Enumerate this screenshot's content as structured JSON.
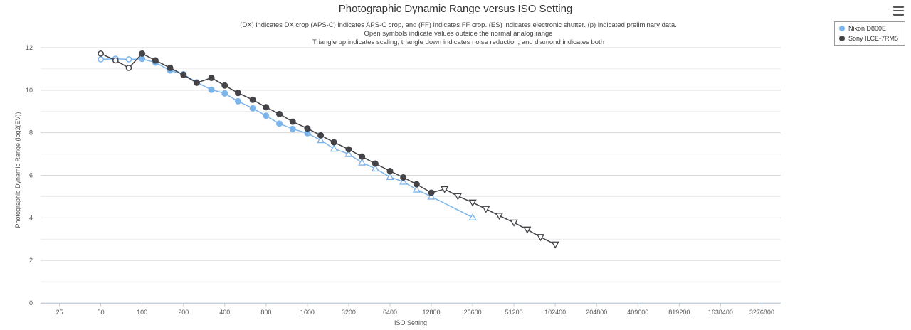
{
  "title": "Photographic Dynamic Range versus ISO Setting",
  "subtitle": [
    "(DX) indicates DX crop (APS-C) indicates APS-C crop, and (FF) indicates FF crop. (ES) indicates electronic shutter. (p) indicated preliminary data.",
    "Open symbols indicate values outside the normal analog range",
    "Triangle up indicates scaling, triangle down indicates noise reduction, and diamond indicates both"
  ],
  "legend": [
    {
      "label": "Nikon D800E",
      "color": "#7cb5ec"
    },
    {
      "label": "Sony ILCE-7RM5",
      "color": "#434348"
    }
  ],
  "chart_data": {
    "type": "line",
    "title": "Photographic Dynamic Range versus ISO Setting",
    "xlabel": "ISO Setting",
    "ylabel": "Photographic Dynamic Range (log2(EV))",
    "x_scale": "log2",
    "x_ticks": [
      25,
      50,
      100,
      200,
      400,
      800,
      1600,
      3200,
      6400,
      12800,
      25600,
      51200,
      102400,
      204800,
      409600,
      819200,
      1638400,
      3276800
    ],
    "xlim": [
      18.2,
      4500000
    ],
    "ylim": [
      0,
      12
    ],
    "y_ticks": [
      0,
      2,
      4,
      6,
      8,
      10,
      12
    ],
    "grid": true,
    "legend_position": "top-right",
    "series": [
      {
        "name": "Nikon D800E",
        "color": "#7cb5ec",
        "points": [
          {
            "x": 50,
            "y": 11.45,
            "m": "open-circle"
          },
          {
            "x": 64,
            "y": 11.48,
            "m": "open-circle"
          },
          {
            "x": 80,
            "y": 11.45,
            "m": "open-circle"
          },
          {
            "x": 100,
            "y": 11.47,
            "m": "circle"
          },
          {
            "x": 125,
            "y": 11.3,
            "m": "circle"
          },
          {
            "x": 160,
            "y": 10.93,
            "m": "circle"
          },
          {
            "x": 200,
            "y": 10.75,
            "m": "circle"
          },
          {
            "x": 250,
            "y": 10.37,
            "m": "circle"
          },
          {
            "x": 320,
            "y": 10.02,
            "m": "circle"
          },
          {
            "x": 400,
            "y": 9.85,
            "m": "circle"
          },
          {
            "x": 500,
            "y": 9.48,
            "m": "circle"
          },
          {
            "x": 640,
            "y": 9.15,
            "m": "circle"
          },
          {
            "x": 800,
            "y": 8.8,
            "m": "circle"
          },
          {
            "x": 1000,
            "y": 8.43,
            "m": "circle"
          },
          {
            "x": 1250,
            "y": 8.18,
            "m": "circle"
          },
          {
            "x": 1600,
            "y": 7.98,
            "m": "circle"
          },
          {
            "x": 2000,
            "y": 7.65,
            "m": "open-triangle-up"
          },
          {
            "x": 2500,
            "y": 7.25,
            "m": "open-triangle-up"
          },
          {
            "x": 3200,
            "y": 7.0,
            "m": "open-triangle-up"
          },
          {
            "x": 4000,
            "y": 6.6,
            "m": "open-triangle-up"
          },
          {
            "x": 5000,
            "y": 6.32,
            "m": "open-triangle-up"
          },
          {
            "x": 6400,
            "y": 5.92,
            "m": "open-triangle-up"
          },
          {
            "x": 8000,
            "y": 5.7,
            "m": "open-triangle-up"
          },
          {
            "x": 10000,
            "y": 5.33,
            "m": "open-triangle-up"
          },
          {
            "x": 12800,
            "y": 5.0,
            "m": "open-triangle-up"
          },
          {
            "x": 25600,
            "y": 4.02,
            "m": "open-triangle-up"
          }
        ]
      },
      {
        "name": "Sony ILCE-7RM5",
        "color": "#434348",
        "points": [
          {
            "x": 50,
            "y": 11.72,
            "m": "open-circle"
          },
          {
            "x": 64,
            "y": 11.4,
            "m": "open-circle"
          },
          {
            "x": 80,
            "y": 11.05,
            "m": "open-circle"
          },
          {
            "x": 100,
            "y": 11.72,
            "m": "circle"
          },
          {
            "x": 125,
            "y": 11.4,
            "m": "circle"
          },
          {
            "x": 160,
            "y": 11.05,
            "m": "circle"
          },
          {
            "x": 200,
            "y": 10.72,
            "m": "circle"
          },
          {
            "x": 250,
            "y": 10.35,
            "m": "circle"
          },
          {
            "x": 320,
            "y": 10.58,
            "m": "circle"
          },
          {
            "x": 400,
            "y": 10.22,
            "m": "circle"
          },
          {
            "x": 500,
            "y": 9.87,
            "m": "circle"
          },
          {
            "x": 640,
            "y": 9.55,
            "m": "circle"
          },
          {
            "x": 800,
            "y": 9.2,
            "m": "circle"
          },
          {
            "x": 1000,
            "y": 8.88,
            "m": "circle"
          },
          {
            "x": 1250,
            "y": 8.52,
            "m": "circle"
          },
          {
            "x": 1600,
            "y": 8.2,
            "m": "circle"
          },
          {
            "x": 2000,
            "y": 7.88,
            "m": "circle"
          },
          {
            "x": 2500,
            "y": 7.55,
            "m": "circle"
          },
          {
            "x": 3200,
            "y": 7.22,
            "m": "circle"
          },
          {
            "x": 4000,
            "y": 6.88,
            "m": "circle"
          },
          {
            "x": 5000,
            "y": 6.55,
            "m": "circle"
          },
          {
            "x": 6400,
            "y": 6.2,
            "m": "circle"
          },
          {
            "x": 8000,
            "y": 5.9,
            "m": "circle"
          },
          {
            "x": 10000,
            "y": 5.58,
            "m": "circle"
          },
          {
            "x": 12800,
            "y": 5.18,
            "m": "circle"
          },
          {
            "x": 16000,
            "y": 5.35,
            "m": "open-triangle-down"
          },
          {
            "x": 20000,
            "y": 5.02,
            "m": "open-triangle-down"
          },
          {
            "x": 25600,
            "y": 4.72,
            "m": "open-triangle-down"
          },
          {
            "x": 32000,
            "y": 4.42,
            "m": "open-triangle-down"
          },
          {
            "x": 40000,
            "y": 4.1,
            "m": "open-triangle-down"
          },
          {
            "x": 51200,
            "y": 3.78,
            "m": "open-triangle-down"
          },
          {
            "x": 64000,
            "y": 3.45,
            "m": "open-triangle-down"
          },
          {
            "x": 80000,
            "y": 3.1,
            "m": "open-triangle-down"
          },
          {
            "x": 102400,
            "y": 2.75,
            "m": "open-triangle-down"
          }
        ]
      }
    ]
  }
}
